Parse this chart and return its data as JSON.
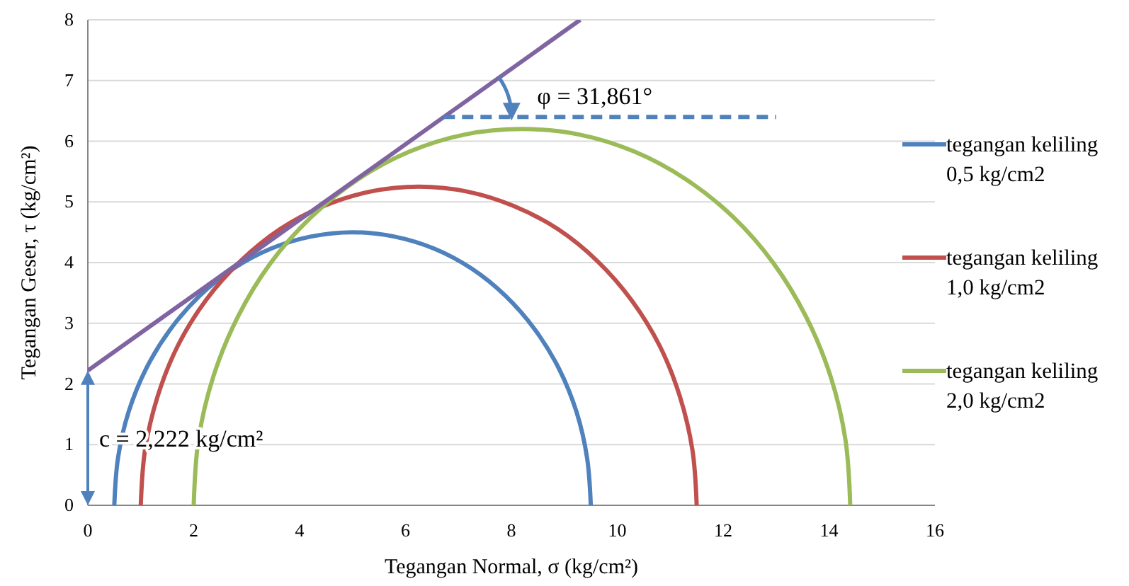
{
  "chart_data": {
    "type": "line",
    "xlabel": "Tegangan Normal, σ (kg/cm²)",
    "ylabel": "Tegangan Geser, τ (kg/cm²)",
    "xlim": [
      0,
      16
    ],
    "xticks": [
      0,
      2,
      4,
      6,
      8,
      10,
      12,
      14,
      16
    ],
    "ylim": [
      0,
      8
    ],
    "yticks": [
      0,
      1,
      2,
      3,
      4,
      5,
      6,
      7,
      8
    ],
    "grid": "y",
    "legend": "right",
    "marker": "none",
    "series": [
      {
        "name": "tegangan keliling 0,5 kg/cm2",
        "color": "#4f81bd",
        "x": [
          0.5,
          0.57,
          0.77,
          1.1,
          1.55,
          2.11,
          2.75,
          3.46,
          4.22,
          5,
          5.78,
          6.54,
          7.25,
          7.89,
          8.45,
          8.9,
          9.23,
          9.43,
          9.5
        ],
        "values": [
          0,
          0.78,
          1.54,
          2.25,
          2.89,
          3.45,
          3.9,
          4.23,
          4.43,
          4.5,
          4.43,
          4.23,
          3.9,
          3.45,
          2.89,
          2.25,
          1.54,
          0.78,
          0
        ]
      },
      {
        "name": "tegangan keliling 1,0 kg/cm2",
        "color": "#c0504d",
        "x": [
          1.0,
          1.08,
          1.32,
          1.7,
          2.23,
          2.88,
          3.63,
          4.45,
          5.34,
          6.25,
          7.16,
          8.05,
          8.88,
          9.63,
          10.27,
          10.8,
          11.18,
          11.42,
          11.5
        ],
        "values": [
          0,
          0.91,
          1.8,
          2.63,
          3.38,
          4.02,
          4.55,
          4.93,
          5.17,
          5.25,
          5.17,
          4.93,
          4.55,
          4.02,
          3.38,
          2.63,
          1.8,
          0.91,
          0
        ]
      },
      {
        "name": "tegangan keliling 2,0 kg/cm2",
        "color": "#9bbb59",
        "x": [
          2.0,
          2.09,
          2.37,
          2.83,
          3.45,
          4.22,
          5.1,
          6.08,
          7.12,
          8.2,
          9.28,
          10.32,
          11.3,
          12.19,
          12.95,
          13.57,
          14.03,
          14.31,
          14.4
        ],
        "values": [
          0,
          1.08,
          2.12,
          3.1,
          3.99,
          4.75,
          5.37,
          5.83,
          6.11,
          6.2,
          6.11,
          5.83,
          5.37,
          4.75,
          3.99,
          3.1,
          2.12,
          1.08,
          0
        ]
      },
      {
        "color": "#8064a2",
        "x": [
          0,
          9.3
        ],
        "values": [
          2.22,
          8.0
        ]
      },
      {
        "color": "#4f81bd",
        "line_style": "dashed",
        "x": [
          6.72,
          13
        ],
        "values": [
          6.4,
          6.4
        ]
      }
    ],
    "annotations": [
      "φ = 31,861°",
      "c = 2,222 kg/cm²"
    ]
  }
}
